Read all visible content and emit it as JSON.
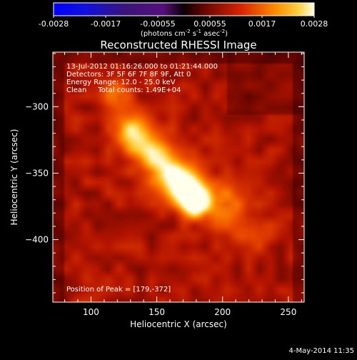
{
  "colorbar": {
    "tick_labels": [
      "-0.0028",
      "-0.0017",
      "-0.00055",
      "0.00055",
      "0.0017",
      "0.0028"
    ],
    "units_main": "(photons cm",
    "units_sup1": "-2",
    "units_mid": " s",
    "units_sup2": "-1",
    "units_end": " asec",
    "units_sup3": "-2",
    "units_close": ")"
  },
  "annotations": {
    "line1": "13-Jul-2012 01:16:26.000 to 01:21:44.000",
    "line2": "Detectors: 3F 5F 6F 7F 8F 9F, Att 0",
    "line3": "Energy Range: 12.0 - 25.0 keV",
    "line4": "Clean     Total counts: 1.49E+04",
    "peak": "Position of Peak = [179,-372]"
  },
  "footer_date": "4-May-2014 11:35",
  "chart_data": {
    "type": "heatmap",
    "title": "Reconstructed RHESSI Image",
    "xlabel": "Heliocentric X (arcsec)",
    "ylabel": "Heliocentric Y (arcsec)",
    "xlim": [
      71,
      262
    ],
    "ylim": [
      -447,
      -259
    ],
    "x_ticks": [
      100,
      150,
      200,
      250
    ],
    "y_ticks": [
      -300,
      -350,
      -400
    ],
    "x_tick_labels": [
      "100",
      "150",
      "200",
      "250"
    ],
    "y_tick_labels": [
      "−300",
      "−350",
      "−400"
    ],
    "colorbar_range": [
      -0.0028,
      0.0028
    ],
    "peak_position": [
      179,
      -372
    ],
    "sources": [
      {
        "x": 179,
        "y": -372,
        "intensity": 1.0,
        "sigma": 8
      },
      {
        "x": 172,
        "y": -360,
        "intensity": 0.75,
        "sigma": 10
      },
      {
        "x": 160,
        "y": -350,
        "intensity": 0.62,
        "sigma": 10
      },
      {
        "x": 132,
        "y": -318,
        "intensity": 0.65,
        "sigma": 10
      },
      {
        "x": 146,
        "y": -335,
        "intensity": 0.55,
        "sigma": 11
      },
      {
        "x": 118,
        "y": -290,
        "intensity": 0.4,
        "sigma": 8
      },
      {
        "x": 200,
        "y": -372,
        "intensity": 0.42,
        "sigma": 12
      },
      {
        "x": 220,
        "y": -395,
        "intensity": 0.28,
        "sigma": 12
      }
    ]
  }
}
